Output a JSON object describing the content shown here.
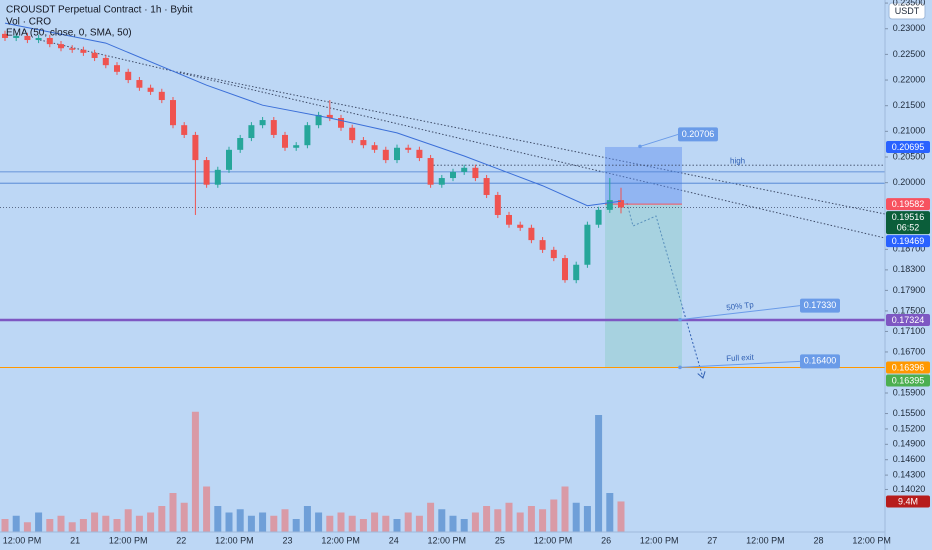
{
  "chart_data": {
    "type": "candlestick",
    "title": "CROUSDT Perpetual Contract · 1h · Bybit",
    "currency": "USDT",
    "up_color": "#26a69a",
    "down_color": "#ef5350",
    "grid": false,
    "ylim": [
      0.1323,
      0.2356
    ],
    "yticks": [
      {
        "value": 0.235,
        "label": "0.23500"
      },
      {
        "value": 0.23,
        "label": "0.23000"
      },
      {
        "value": 0.225,
        "label": "0.22500"
      },
      {
        "value": 0.22,
        "label": "0.22000"
      },
      {
        "value": 0.215,
        "label": "0.21500"
      },
      {
        "value": 0.21,
        "label": "0.21000"
      },
      {
        "value": 0.205,
        "label": "0.20500"
      },
      {
        "value": 0.2,
        "label": "0.20000"
      },
      {
        "value": 0.187,
        "label": "0.18700"
      },
      {
        "value": 0.183,
        "label": "0.18300"
      },
      {
        "value": 0.179,
        "label": "0.17900"
      },
      {
        "value": 0.175,
        "label": "0.17500"
      },
      {
        "value": 0.171,
        "label": "0.17100"
      },
      {
        "value": 0.167,
        "label": "0.16700"
      },
      {
        "value": 0.159,
        "label": "0.15900"
      },
      {
        "value": 0.155,
        "label": "0.15500"
      },
      {
        "value": 0.152,
        "label": "0.15200"
      },
      {
        "value": 0.149,
        "label": "0.14900"
      },
      {
        "value": 0.146,
        "label": "0.14600"
      },
      {
        "value": 0.143,
        "label": "0.14300"
      },
      {
        "value": 0.1402,
        "label": "0.14020"
      }
    ],
    "x_labels": [
      "12:00 PM",
      "21",
      "12:00 PM",
      "22",
      "12:00 PM",
      "23",
      "12:00 PM",
      "24",
      "12:00 PM",
      "25",
      "12:00 PM",
      "26",
      "12:00 PM",
      "27",
      "12:00 PM",
      "28",
      "12:00 PM"
    ],
    "ohlc": [
      [
        0.229,
        0.2296,
        0.2276,
        0.2282
      ],
      [
        0.2282,
        0.2292,
        0.2276,
        0.2286
      ],
      [
        0.2286,
        0.2292,
        0.2272,
        0.2278
      ],
      [
        0.2278,
        0.2288,
        0.2272,
        0.2282
      ],
      [
        0.2282,
        0.2288,
        0.2264,
        0.227
      ],
      [
        0.227,
        0.2276,
        0.2256,
        0.2262
      ],
      [
        0.2262,
        0.2268,
        0.2253,
        0.2259
      ],
      [
        0.2259,
        0.2265,
        0.2247,
        0.2253
      ],
      [
        0.2253,
        0.2259,
        0.2237,
        0.2243
      ],
      [
        0.2243,
        0.2249,
        0.2223,
        0.2229
      ],
      [
        0.2229,
        0.2235,
        0.221,
        0.2216
      ],
      [
        0.2216,
        0.2222,
        0.2194,
        0.22
      ],
      [
        0.22,
        0.2206,
        0.2179,
        0.2185
      ],
      [
        0.2185,
        0.2191,
        0.2171,
        0.2177
      ],
      [
        0.2177,
        0.2183,
        0.2155,
        0.2161
      ],
      [
        0.2161,
        0.2167,
        0.2106,
        0.2112
      ],
      [
        0.2112,
        0.2118,
        0.2087,
        0.2093
      ],
      [
        0.2093,
        0.2099,
        0.1937,
        0.2044
      ],
      [
        0.2044,
        0.205,
        0.199,
        0.1996
      ],
      [
        0.1996,
        0.2031,
        0.199,
        0.2025
      ],
      [
        0.2025,
        0.207,
        0.2019,
        0.2064
      ],
      [
        0.2064,
        0.2093,
        0.2058,
        0.2087
      ],
      [
        0.2087,
        0.2118,
        0.2081,
        0.2112
      ],
      [
        0.2112,
        0.2128,
        0.2106,
        0.2122
      ],
      [
        0.2122,
        0.2128,
        0.2087,
        0.2093
      ],
      [
        0.2093,
        0.2099,
        0.2062,
        0.2068
      ],
      [
        0.2068,
        0.2079,
        0.2062,
        0.2073
      ],
      [
        0.2073,
        0.2118,
        0.2067,
        0.2112
      ],
      [
        0.2112,
        0.2138,
        0.2106,
        0.2132
      ],
      [
        0.2132,
        0.2161,
        0.212,
        0.2126
      ],
      [
        0.2126,
        0.2132,
        0.2101,
        0.2107
      ],
      [
        0.2107,
        0.2113,
        0.2077,
        0.2083
      ],
      [
        0.2083,
        0.2089,
        0.2067,
        0.2073
      ],
      [
        0.2073,
        0.2079,
        0.2058,
        0.2064
      ],
      [
        0.2064,
        0.207,
        0.2038,
        0.2044
      ],
      [
        0.2044,
        0.2074,
        0.2038,
        0.2068
      ],
      [
        0.2068,
        0.2074,
        0.2058,
        0.2064
      ],
      [
        0.2064,
        0.207,
        0.2042,
        0.2048
      ],
      [
        0.2048,
        0.2054,
        0.199,
        0.1996
      ],
      [
        0.1996,
        0.2015,
        0.199,
        0.2009
      ],
      [
        0.2009,
        0.2027,
        0.2003,
        0.2021
      ],
      [
        0.2021,
        0.2035,
        0.2015,
        0.2029
      ],
      [
        0.2029,
        0.2035,
        0.2003,
        0.2009
      ],
      [
        0.2009,
        0.2015,
        0.197,
        0.1976
      ],
      [
        0.1976,
        0.1982,
        0.1931,
        0.1937
      ],
      [
        0.1937,
        0.1943,
        0.1912,
        0.1918
      ],
      [
        0.1918,
        0.1924,
        0.1906,
        0.1912
      ],
      [
        0.1912,
        0.1918,
        0.1882,
        0.1888
      ],
      [
        0.1888,
        0.1894,
        0.1863,
        0.1869
      ],
      [
        0.1869,
        0.1875,
        0.1847,
        0.1853
      ],
      [
        0.1853,
        0.1859,
        0.1805,
        0.181
      ],
      [
        0.181,
        0.1846,
        0.1804,
        0.184
      ],
      [
        0.184,
        0.1924,
        0.1834,
        0.1918
      ],
      [
        0.1918,
        0.1953,
        0.1912,
        0.1947
      ],
      [
        0.1947,
        0.2009,
        0.1941,
        0.1966
      ],
      [
        0.1966,
        0.199,
        0.194,
        0.19516
      ]
    ],
    "volume": {
      "name": "Vol · CRO",
      "ylim": [
        0,
        40000000
      ],
      "up_color": "#6f9fd8",
      "down_color": "#d99aa6",
      "values": [
        4000000,
        5000000,
        3000000,
        6000000,
        4000000,
        5000000,
        3000000,
        4000000,
        6000000,
        5000000,
        4000000,
        7000000,
        5000000,
        6000000,
        8000000,
        12000000,
        9000000,
        37000000,
        14000000,
        8000000,
        6000000,
        7000000,
        5000000,
        6000000,
        5000000,
        7000000,
        4000000,
        8000000,
        6000000,
        5000000,
        6000000,
        5000000,
        4000000,
        6000000,
        5000000,
        4000000,
        6000000,
        5000000,
        9000000,
        7000000,
        5000000,
        4000000,
        6000000,
        8000000,
        7000000,
        9000000,
        6000000,
        8000000,
        7000000,
        10000000,
        14000000,
        9000000,
        8000000,
        36000000,
        12000000,
        9400000
      ]
    },
    "ema": {
      "name": "EMA (50, close, 0, SMA, 50)",
      "color": "#3b6fd8",
      "x": [
        0,
        9,
        18,
        23,
        29,
        35,
        41,
        48,
        52,
        55
      ],
      "values": [
        0.2311,
        0.2272,
        0.219,
        0.2151,
        0.2126,
        0.2097,
        0.2052,
        0.1994,
        0.1955,
        0.1964
      ]
    },
    "levels": [
      {
        "value": 0.2021,
        "color": "#4a7fd0"
      },
      {
        "value": 0.1999,
        "color": "#4a7fd0"
      }
    ],
    "high_line": {
      "label": "high",
      "value": 0.2034
    },
    "callout_color": "#6a9be8",
    "callouts": [
      {
        "value": 0.20706
      },
      {
        "text": "50% Tp",
        "value": 0.1733,
        "label": "0.17330"
      },
      {
        "text": "Full exit",
        "value": 0.164,
        "label": "0.16400"
      }
    ],
    "price_badges": [
      {
        "value": 0.20695,
        "color": "#2962ff"
      },
      {
        "value": 0.19582,
        "color": "#f7525f"
      },
      {
        "value": 0.19516,
        "color": "#0b5e3a",
        "countdown": "06:52",
        "line": "dotted"
      },
      {
        "value": 0.19469,
        "color": "#2962ff"
      },
      {
        "value": 0.17324,
        "color": "#7e57c2",
        "line": "solid",
        "line_width": 2.5
      },
      {
        "value": 0.16396,
        "color": "#ff9800",
        "line": "solid",
        "line_width": 1
      },
      {
        "value": 0.16395,
        "color": "#4caf50"
      },
      {
        "value": 9400000,
        "label": "9.4M",
        "color": "#b71c1c",
        "pane": "volume"
      }
    ]
  }
}
